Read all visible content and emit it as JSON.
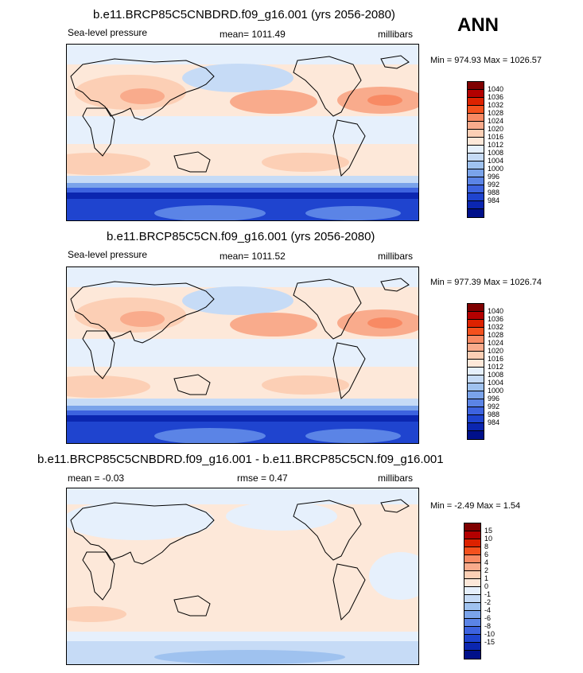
{
  "season": "ANN",
  "colors": {
    "abs": [
      "#7f0000",
      "#b30000",
      "#dd2200",
      "#f4511e",
      "#f88a64",
      "#f9ab8c",
      "#fccfb5",
      "#fde8d9",
      "#e6f0fc",
      "#c6dbf6",
      "#9fc2ef",
      "#7aa3ea",
      "#5b84e6",
      "#3d63df",
      "#1f44cf",
      "#0b26b0",
      "#00108a"
    ],
    "diff": [
      "#7f0000",
      "#b30000",
      "#dd2200",
      "#f4511e",
      "#f88a64",
      "#f9ab8c",
      "#fccfb5",
      "#fde8d9",
      "#e6f0fc",
      "#c6dbf6",
      "#9fc2ef",
      "#7aa3ea",
      "#5b84e6",
      "#3d63df",
      "#1f44cf",
      "#0b26b0",
      "#00108a"
    ]
  },
  "panels": [
    {
      "title": "b.e11.BRCP85C5CNBDRD.f09_g16.001 (yrs 2056-2080)",
      "left_label": "Sea-level pressure",
      "mean_label": "mean= 1011.49",
      "units": "millibars",
      "minmax": "Min = 974.93 Max = 1026.57",
      "colorbar_labels": [
        "1040",
        "1036",
        "1032",
        "1028",
        "1024",
        "1020",
        "1016",
        "1012",
        "1008",
        "1004",
        "1000",
        "996",
        "992",
        "988",
        "984"
      ]
    },
    {
      "title": "b.e11.BRCP85C5CN.f09_g16.001 (yrs 2056-2080)",
      "left_label": "Sea-level pressure",
      "mean_label": "mean= 1011.52",
      "units": "millibars",
      "minmax": "Min = 977.39 Max = 1026.74",
      "colorbar_labels": [
        "1040",
        "1036",
        "1032",
        "1028",
        "1024",
        "1020",
        "1016",
        "1012",
        "1008",
        "1004",
        "1000",
        "996",
        "992",
        "988",
        "984"
      ]
    },
    {
      "title": "b.e11.BRCP85C5CNBDRD.f09_g16.001 - b.e11.BRCP85C5CN.f09_g16.001",
      "left_label": "mean = -0.03",
      "mean_label": "rmse = 0.47",
      "units": "millibars",
      "minmax": "Min = -2.49 Max = 1.54",
      "colorbar_labels": [
        "15",
        "10",
        "8",
        "6",
        "4",
        "2",
        "1",
        "0",
        "-1",
        "-2",
        "-4",
        "-6",
        "-8",
        "-10",
        "-15"
      ]
    }
  ]
}
